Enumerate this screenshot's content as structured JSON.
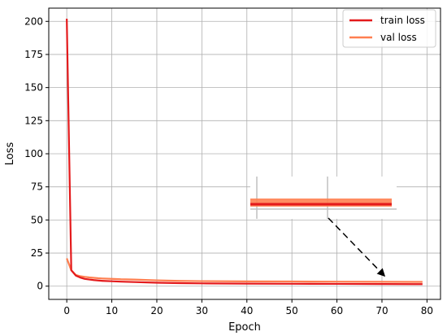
{
  "chart_data": {
    "type": "line",
    "title": "",
    "xlabel": "Epoch",
    "ylabel": "Loss",
    "xlim": [
      -4,
      83
    ],
    "ylim": [
      -10,
      210
    ],
    "x_ticks": [
      0,
      10,
      20,
      30,
      40,
      50,
      60,
      70,
      80
    ],
    "y_ticks": [
      0,
      25,
      50,
      75,
      100,
      125,
      150,
      175,
      200
    ],
    "grid": true,
    "legend_position": "top-right",
    "series": [
      {
        "name": "train loss",
        "color": "#e41a1c",
        "x": [
          0,
          1,
          2,
          3,
          4,
          5,
          6,
          7,
          8,
          10,
          12,
          15,
          20,
          25,
          30,
          40,
          50,
          60,
          70,
          79
        ],
        "y": [
          202,
          12,
          8,
          6.5,
          5.5,
          5,
          4.6,
          4.3,
          4,
          3.7,
          3.4,
          3.1,
          2.6,
          2.3,
          2.1,
          1.9,
          1.8,
          1.7,
          1.6,
          1.5
        ]
      },
      {
        "name": "val loss",
        "color": "#ff7f50",
        "x": [
          0,
          1,
          2,
          3,
          4,
          5,
          6,
          7,
          8,
          10,
          12,
          15,
          20,
          25,
          30,
          40,
          50,
          60,
          70,
          79
        ],
        "y": [
          21,
          12,
          8.5,
          7.5,
          7,
          6.6,
          6.3,
          6,
          5.8,
          5.5,
          5.2,
          5,
          4.4,
          4,
          3.8,
          3.6,
          3.5,
          3.4,
          3.3,
          3.2
        ]
      }
    ]
  }
}
